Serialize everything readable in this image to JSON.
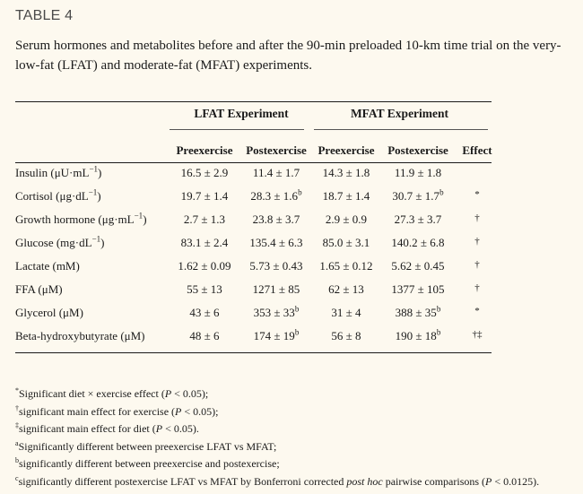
{
  "table_label": "TABLE 4",
  "caption": "Serum hormones and metabolites before and after the 90-min preloaded 10-km time trial on the very-low-fat (LFAT) and moderate-fat (MFAT) experiments.",
  "groups": {
    "lfat": "LFAT Experiment",
    "mfat": "MFAT Experiment"
  },
  "columns": [
    "",
    "Preexercise",
    "Postexercise",
    "Preexercise",
    "Postexercise",
    "Effect"
  ],
  "rows": [
    {
      "label": "Insulin (μU·mL",
      "label_sup": "−1",
      "label_tail": ")",
      "v": [
        "16.5 ± 2.9",
        "11.4 ± 1.7",
        "14.3 ± 1.8",
        "11.9 ± 1.8"
      ],
      "s": [
        "",
        "",
        "",
        ""
      ],
      "effect": ""
    },
    {
      "label": "Cortisol (μg·dL",
      "label_sup": "−1",
      "label_tail": ")",
      "v": [
        "19.7 ± 1.4",
        "28.3 ± 1.6",
        "18.7 ± 1.4",
        "30.7 ± 1.7"
      ],
      "s": [
        "",
        "b",
        "",
        "b"
      ],
      "effect": "*"
    },
    {
      "label": "Growth hormone (μg·mL",
      "label_sup": "−1",
      "label_tail": ")",
      "v": [
        "2.7 ± 1.3",
        "23.8 ± 3.7",
        "2.9 ± 0.9",
        "27.3 ± 3.7"
      ],
      "s": [
        "",
        "",
        "",
        ""
      ],
      "effect": "†"
    },
    {
      "label": "Glucose (mg·dL",
      "label_sup": "−1",
      "label_tail": ")",
      "v": [
        "83.1 ± 2.4",
        "135.4 ± 6.3",
        "85.0 ± 3.1",
        "140.2 ± 6.8"
      ],
      "s": [
        "",
        "",
        "",
        ""
      ],
      "effect": "†"
    },
    {
      "label": "Lactate (mM)",
      "label_sup": "",
      "label_tail": "",
      "v": [
        "1.62 ± 0.09",
        "5.73 ± 0.43",
        "1.65 ± 0.12",
        "5.62 ± 0.45"
      ],
      "s": [
        "",
        "",
        "",
        ""
      ],
      "effect": "†"
    },
    {
      "label": "FFA (μM)",
      "label_sup": "",
      "label_tail": "",
      "v": [
        "55 ± 13",
        "1271 ± 85",
        "62 ± 13",
        "1377 ± 105"
      ],
      "s": [
        "",
        "",
        "",
        ""
      ],
      "effect": "†"
    },
    {
      "label": "Glycerol (μM)",
      "label_sup": "",
      "label_tail": "",
      "v": [
        "43 ± 6",
        "353 ± 33",
        "31 ± 4",
        "388 ± 35"
      ],
      "s": [
        "",
        "b",
        "",
        "b"
      ],
      "effect": "*"
    },
    {
      "label": "Beta-hydroxybutyrate (μM)",
      "label_sup": "",
      "label_tail": "",
      "v": [
        "48 ± 6",
        "174 ± 19",
        "56 ± 8",
        "190 ± 18"
      ],
      "s": [
        "",
        "b",
        "",
        "b"
      ],
      "effect": "†‡"
    }
  ],
  "footnotes": [
    {
      "mark": "*",
      "text": "Significant diet × exercise effect (",
      "p": "P",
      "tail": " < 0.05);"
    },
    {
      "mark": "†",
      "text": "significant main effect for exercise (",
      "p": "P",
      "tail": " < 0.05);"
    },
    {
      "mark": "‡",
      "text": "significant main effect for diet (",
      "p": "P",
      "tail": " < 0.05)."
    },
    {
      "mark": "a",
      "text": "Significantly different between preexercise LFAT vs MFAT;",
      "p": "",
      "tail": ""
    },
    {
      "mark": "b",
      "text": "significantly different between preexercise and postexercise;",
      "p": "",
      "tail": ""
    },
    {
      "mark": "c",
      "text": "significantly different postexercise LFAT vs MFAT by Bonferroni corrected ",
      "italic": "post hoc",
      "text2": " pairwise comparisons (",
      "p": "P",
      "tail": " < 0.0125)."
    }
  ]
}
